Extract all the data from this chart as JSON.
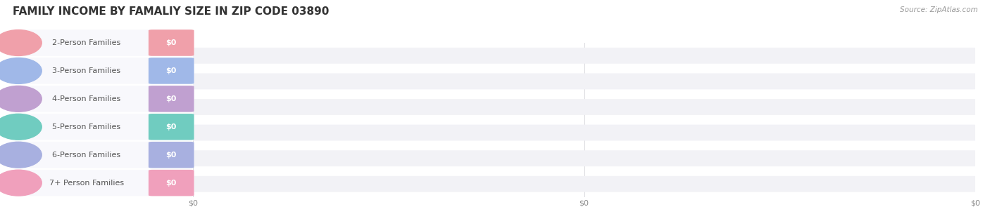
{
  "title": "FAMILY INCOME BY FAMALIY SIZE IN ZIP CODE 03890",
  "source_text": "Source: ZipAtlas.com",
  "categories": [
    "2-Person Families",
    "3-Person Families",
    "4-Person Families",
    "5-Person Families",
    "6-Person Families",
    "7+ Person Families"
  ],
  "values": [
    0,
    0,
    0,
    0,
    0,
    0
  ],
  "bar_colors": [
    "#f0a0aa",
    "#a0b8e8",
    "#c0a0d0",
    "#70ccc0",
    "#a8b0e0",
    "#f0a0bc"
  ],
  "bar_bg_color": "#f2f2f6",
  "background_color": "#ffffff",
  "title_fontsize": 11,
  "label_fontsize": 8.0,
  "value_fontsize": 8.0,
  "source_fontsize": 7.5,
  "xtick_positions": [
    0.0,
    0.5,
    1.0
  ],
  "xtick_labels": [
    "$0",
    "$0",
    "$0"
  ]
}
